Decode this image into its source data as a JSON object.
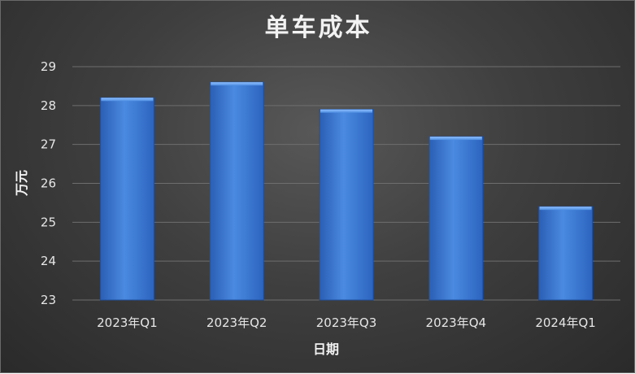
{
  "chart_data": {
    "type": "bar",
    "title": "单车成本",
    "xlabel": "日期",
    "ylabel": "万元",
    "categories": [
      "2023年Q1",
      "2023年Q2",
      "2023年Q3",
      "2023年Q4",
      "2024年Q1"
    ],
    "values": [
      28.2,
      28.6,
      27.9,
      27.2,
      25.4
    ],
    "ylim": [
      23,
      29
    ],
    "yticks": [
      23,
      24,
      25,
      26,
      27,
      28,
      29
    ],
    "grid": true,
    "legend": "none"
  },
  "colors": {
    "bar_top": "#5e9be6",
    "bar_bottom": "#2f6ccb",
    "gridline": "#6e6e6e"
  }
}
